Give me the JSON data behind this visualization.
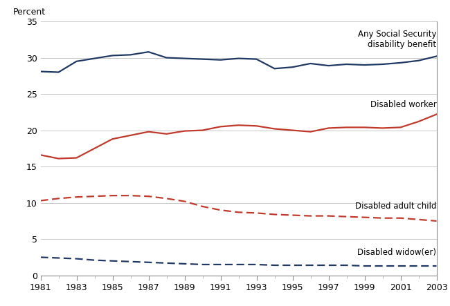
{
  "years": [
    1981,
    1982,
    1983,
    1984,
    1985,
    1986,
    1987,
    1988,
    1989,
    1990,
    1991,
    1992,
    1993,
    1994,
    1995,
    1996,
    1997,
    1998,
    1999,
    2000,
    2001,
    2002,
    2003
  ],
  "any_social_security": [
    28.1,
    28.0,
    29.5,
    29.9,
    30.3,
    30.4,
    30.8,
    30.0,
    29.9,
    29.8,
    29.7,
    29.9,
    29.8,
    28.5,
    28.7,
    29.2,
    28.9,
    29.1,
    29.0,
    29.1,
    29.3,
    29.6,
    30.2
  ],
  "disabled_worker": [
    16.6,
    16.1,
    16.2,
    17.5,
    18.8,
    19.3,
    19.8,
    19.5,
    19.9,
    20.0,
    20.5,
    20.7,
    20.6,
    20.2,
    20.0,
    19.8,
    20.3,
    20.4,
    20.4,
    20.3,
    20.4,
    21.2,
    22.2
  ],
  "disabled_adult_child": [
    10.3,
    10.6,
    10.8,
    10.9,
    11.0,
    11.0,
    10.9,
    10.6,
    10.2,
    9.5,
    9.0,
    8.7,
    8.6,
    8.4,
    8.3,
    8.2,
    8.2,
    8.1,
    8.0,
    7.9,
    7.9,
    7.7,
    7.5
  ],
  "disabled_widow": [
    2.5,
    2.4,
    2.3,
    2.1,
    2.0,
    1.9,
    1.8,
    1.7,
    1.6,
    1.5,
    1.5,
    1.5,
    1.5,
    1.4,
    1.4,
    1.4,
    1.4,
    1.4,
    1.3,
    1.3,
    1.3,
    1.3,
    1.3
  ],
  "color_dark_blue": "#1f3864",
  "color_red": "#c0392b",
  "ylim": [
    0,
    35
  ],
  "yticks": [
    0,
    5,
    10,
    15,
    20,
    25,
    30,
    35
  ],
  "xtick_years": [
    1981,
    1983,
    1985,
    1987,
    1989,
    1991,
    1993,
    1995,
    1997,
    1999,
    2001,
    2003
  ],
  "label_any": "Any Social Security\ndisability benefit",
  "label_worker": "Disabled worker",
  "label_child": "Disabled adult child",
  "label_widow": "Disabled widow(er)",
  "ylabel": "Percent",
  "grid_color": "#c8c8c8"
}
